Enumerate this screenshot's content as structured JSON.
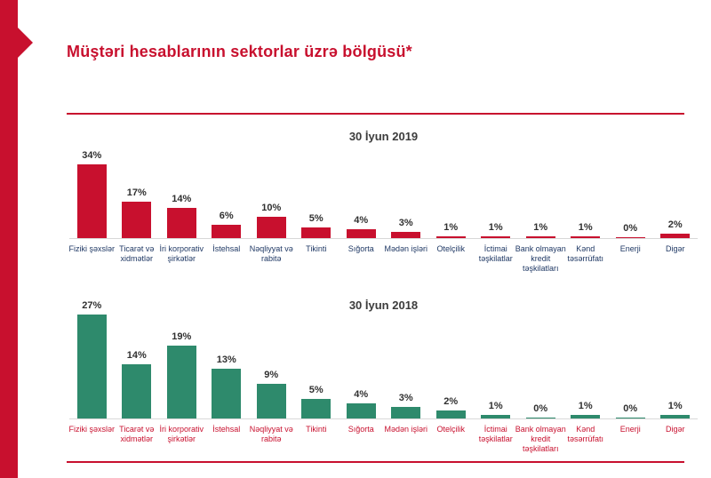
{
  "page": {
    "title": "Müştəri hesablarının sektorlar üzrə bölgüsü*"
  },
  "colors": {
    "accent_red": "#C8102E",
    "bar_red": "#C8102E",
    "bar_green": "#2E8A6C",
    "category_label_navy": "#1F3864",
    "category_label_red": "#C8102E",
    "chart_title_gray": "#3C3C3C",
    "value_label_dark": "#303030",
    "baseline_gray": "#D8D8D8"
  },
  "chart_data": [
    {
      "type": "bar",
      "title": "30 İyun 2019",
      "unit": "%",
      "bar_color": "#C8102E",
      "category_label_color": "#1F3864",
      "grid": false,
      "legend": "none",
      "value_labels_shown": true,
      "ylim": [
        0,
        36
      ],
      "categories": [
        "Fiziki şəxslər",
        "Ticarət və xidmətlər",
        "İri korporativ şirkətlər",
        "İstehsal",
        "Nəqliyyat və rabitə",
        "Tikinti",
        "Sığorta",
        "Mədən işləri",
        "Otelçilik",
        "İctimai təşkilatlar",
        "Bank olmayan kredit təşkilatları",
        "Kənd təsərrüfatı",
        "Enerji",
        "Digər"
      ],
      "values": [
        34,
        17,
        14,
        6,
        10,
        5,
        4,
        3,
        1,
        1,
        1,
        1,
        0,
        2
      ]
    },
    {
      "type": "bar",
      "title": "30 İyun 2018",
      "unit": "%",
      "bar_color": "#2E8A6C",
      "category_label_color": "#C8102E",
      "grid": false,
      "legend": "none",
      "value_labels_shown": true,
      "ylim": [
        0,
        29
      ],
      "categories": [
        "Fiziki şəxslər",
        "Ticarət və xidmətlər",
        "İri korporativ şirkətlər",
        "İstehsal",
        "Nəqliyyat və rabitə",
        "Tikinti",
        "Sığorta",
        "Mədən işləri",
        "Otelçilik",
        "İctimai təşkilatlar",
        "Bank olmayan kredit təşkilatları",
        "Kənd təsərrüfatı",
        "Enerji",
        "Digər"
      ],
      "values": [
        27,
        14,
        19,
        13,
        9,
        5,
        4,
        3,
        2,
        1,
        0,
        1,
        0,
        1
      ]
    }
  ]
}
